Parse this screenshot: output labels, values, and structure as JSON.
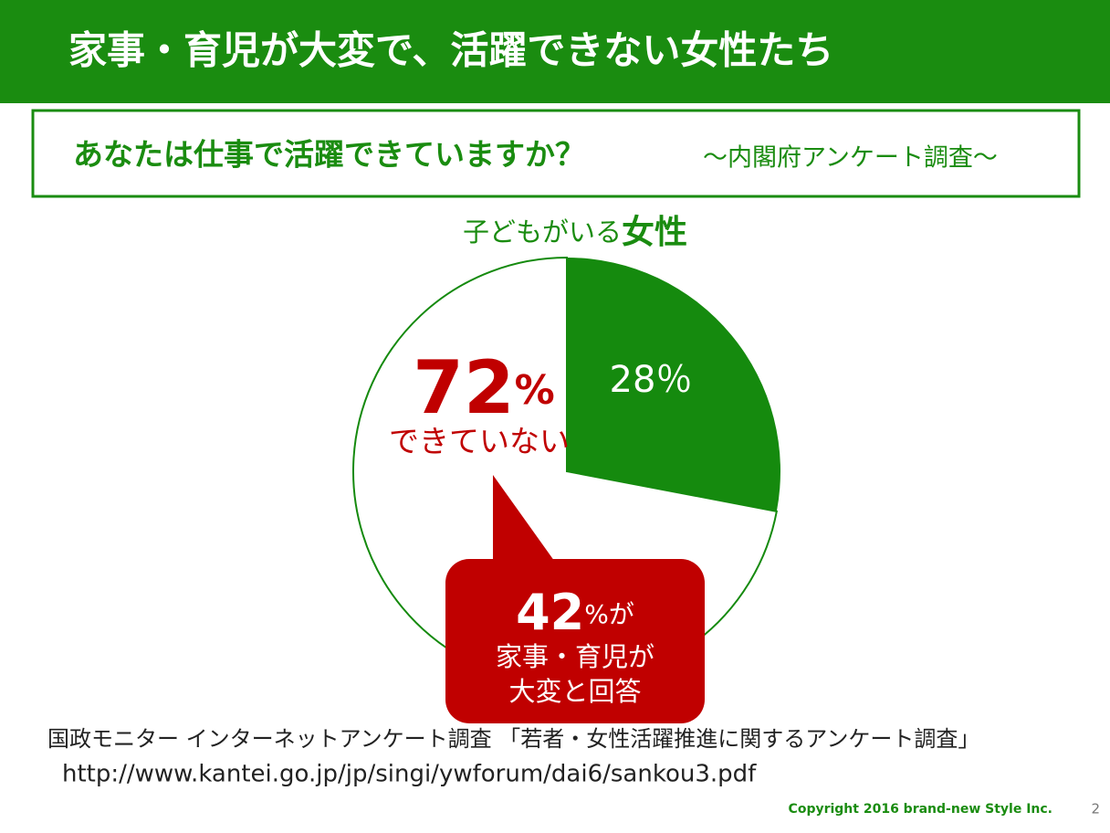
{
  "header": {
    "title": "家事・育児が大変で、活躍できない女性たち"
  },
  "question": {
    "main": "あなたは仕事で活躍できていますか？",
    "source": "～内閣府アンケート調査～"
  },
  "chart_data": {
    "type": "pie",
    "title": "子どもがいる",
    "title_emphasis": "女性",
    "categories": [
      null,
      "できていない"
    ],
    "values": [
      28,
      72
    ],
    "value_labels": [
      "28％",
      "72"
    ],
    "unit": "%",
    "colors": [
      "#158a0e",
      "#ffffff"
    ],
    "outline": "#158a0e"
  },
  "callout": {
    "value": 42,
    "value_label": "42",
    "unit": "%が",
    "lines": [
      "家事・育児が",
      "大変と回答"
    ]
  },
  "footer": {
    "source": "国政モニター インターネットアンケート調査 「若者・女性活躍推進に関するアンケート調査」",
    "url": "http://www.kantei.go.jp/jp/singi/ywforum/dai6/sankou3.pdf",
    "copyright": "Copyright 2016 brand-new Style Inc.",
    "page": "2"
  }
}
